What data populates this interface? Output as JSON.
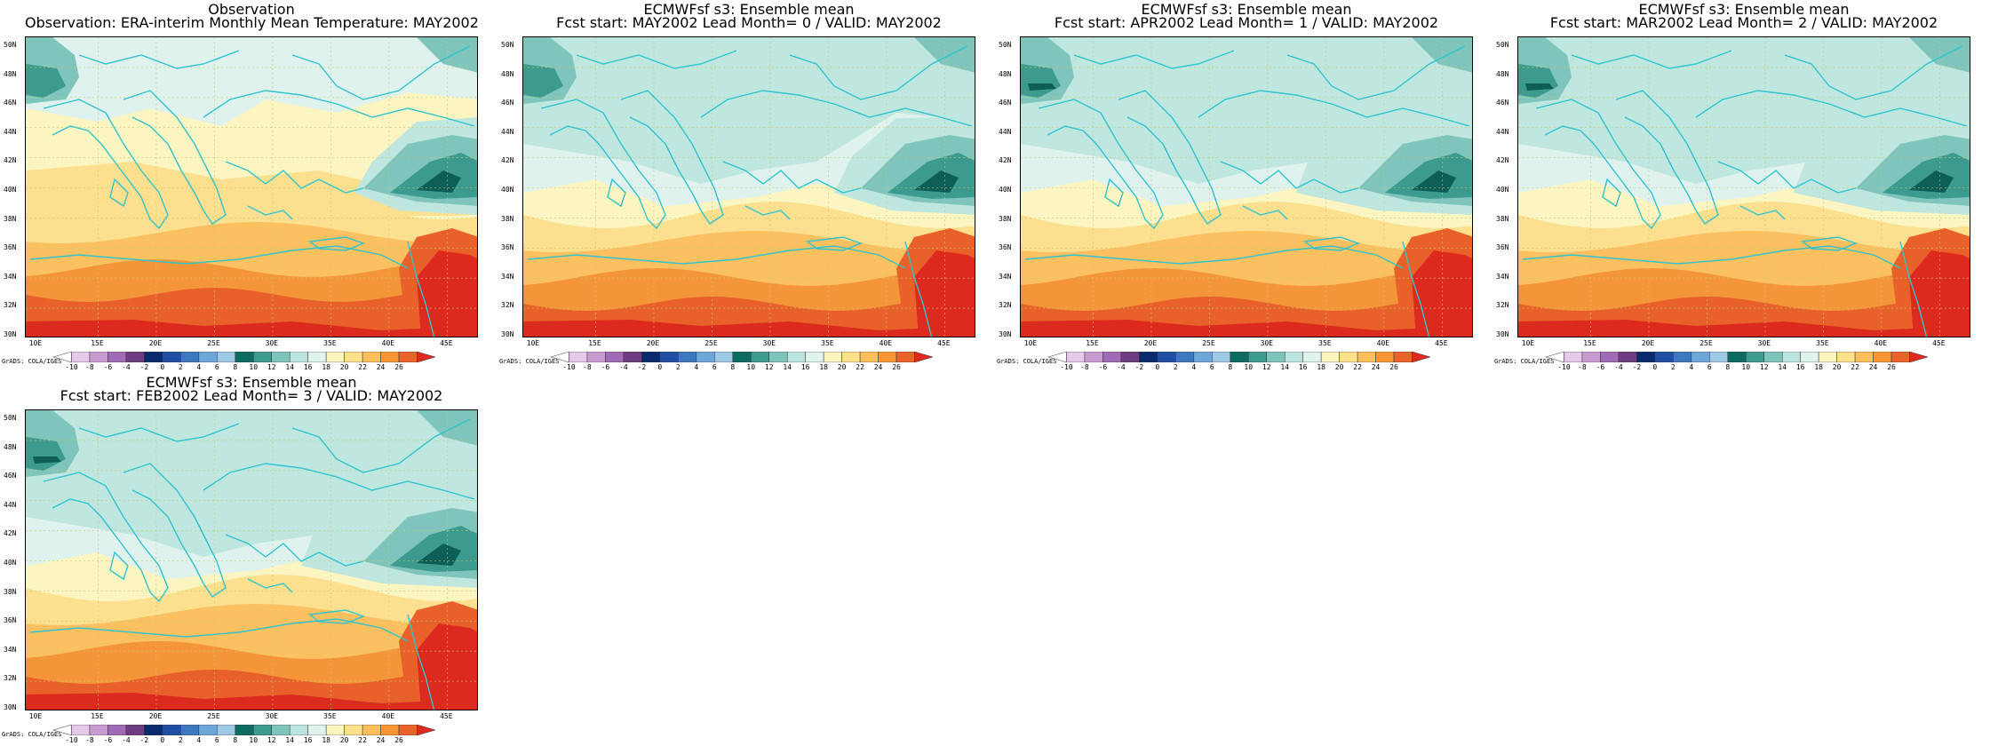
{
  "panels": [
    {
      "title1": "Observation",
      "title2": "Observation: ERA-interim Monthly Mean Temperature: MAY2002",
      "variant": 0
    },
    {
      "title1": "ECMWFsf s3: Ensemble mean",
      "title2": "Fcst start: MAY2002  Lead Month= 0 / VALID: MAY2002",
      "variant": 1
    },
    {
      "title1": "ECMWFsf s3: Ensemble mean",
      "title2": "Fcst start: APR2002  Lead Month= 1 / VALID: MAY2002",
      "variant": 2
    },
    {
      "title1": "ECMWFsf s3: Ensemble mean",
      "title2": "Fcst start: MAR2002  Lead Month= 2 / VALID: MAY2002",
      "variant": 3
    },
    {
      "title1": "ECMWFsf s3: Ensemble mean",
      "title2": "Fcst start: FEB2002  Lead Month= 3 / VALID: MAY2002",
      "variant": 4
    }
  ],
  "lat_labels": [
    "50N",
    "48N",
    "46N",
    "44N",
    "42N",
    "40N",
    "38N",
    "36N",
    "34N",
    "32N",
    "30N"
  ],
  "lon_labels": [
    "10E",
    "15E",
    "20E",
    "25E",
    "30E",
    "35E",
    "40E",
    "45E"
  ],
  "colorbar": {
    "labels": [
      "-10",
      "-8",
      "-6",
      "-4",
      "-2",
      "0",
      "2",
      "4",
      "6",
      "8",
      "10",
      "12",
      "14",
      "16",
      "18",
      "20",
      "22",
      "24",
      "26"
    ],
    "colors": [
      "#ffffff",
      "#e6c8ea",
      "#c89bd2",
      "#a06ab4",
      "#6e3d80",
      "#0a2a6e",
      "#1f4ea0",
      "#3c78be",
      "#6da6d8",
      "#9dc8e6",
      "#0e6b63",
      "#3e9a8e",
      "#7dc4ba",
      "#bce5df",
      "#dff2ee",
      "#fbf6c0",
      "#fde08c",
      "#fbbf5c",
      "#f59637",
      "#e9642a",
      "#e02a20"
    ],
    "source": "GrADS: COLA/IGES"
  }
}
